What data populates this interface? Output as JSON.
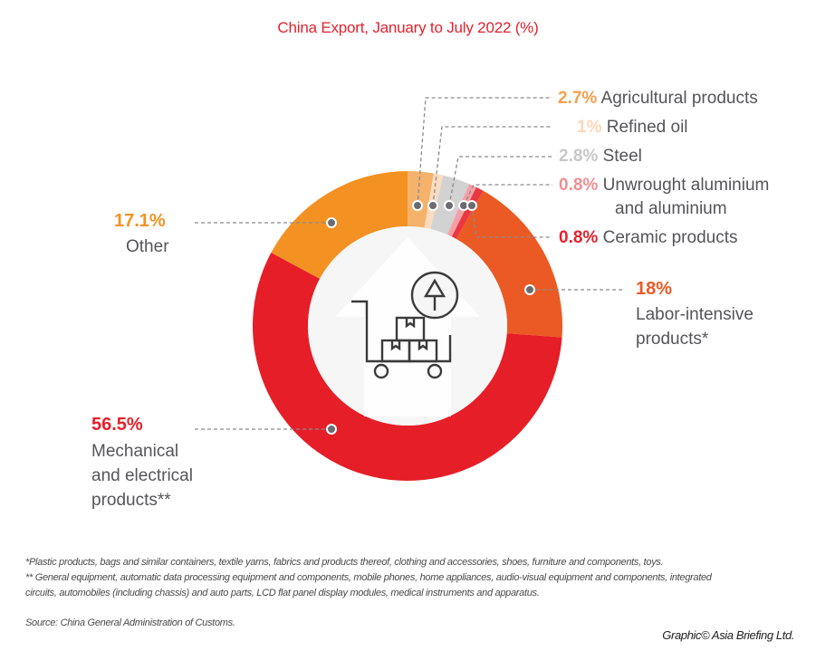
{
  "title": "China Export, January to July 2022 (%)",
  "chart_data": {
    "type": "pie",
    "variant": "donut",
    "title": "China Export, January to July 2022 (%)",
    "unit": "%",
    "start_angle_deg": 0,
    "direction": "clockwise",
    "slices": [
      {
        "key": "agri",
        "label": "Agricultural products",
        "value": 2.7,
        "pct_text": "2.7%",
        "color": "#f5b26b",
        "label_color": "#f5a050"
      },
      {
        "key": "oil",
        "label": "Refined oil",
        "value": 1.0,
        "pct_text": "1%",
        "color": "#fbdcc0",
        "label_color": "#fbd6b8"
      },
      {
        "key": "steel",
        "label": "Steel",
        "value": 2.8,
        "pct_text": "2.8%",
        "color": "#d2d2d2",
        "label_color": "#c8c8c8"
      },
      {
        "key": "alu",
        "label": "Unwrought aluminium and aluminium",
        "label_lines": [
          "Unwrought aluminium",
          "and aluminium"
        ],
        "value": 0.8,
        "pct_text": "0.8%",
        "color": "#f4a0a5",
        "label_color": "#f08e94"
      },
      {
        "key": "ceramic",
        "label": "Ceramic products",
        "value": 0.8,
        "pct_text": "0.8%",
        "color": "#ea3843",
        "label_color": "#e4212d"
      },
      {
        "key": "labor",
        "label": "Labor-intensive products*",
        "label_lines": [
          "Labor-intensive",
          "products*"
        ],
        "value": 18.0,
        "pct_text": "18%",
        "color": "#eb5a24",
        "label_color": "#eb5a24"
      },
      {
        "key": "mech",
        "label": "Mechanical and electrical products**",
        "label_lines": [
          "Mechanical",
          "and electrical",
          "products**"
        ],
        "value": 56.5,
        "pct_text": "56.5%",
        "color": "#e61e28",
        "label_color": "#e4212d"
      },
      {
        "key": "other",
        "label": "Other",
        "value": 17.1,
        "pct_text": "17.1%",
        "color": "#f39222",
        "label_color": "#f39222"
      }
    ]
  },
  "center_icon": "cart-export-icon",
  "footnotes": [
    "*Plastic products, bags and similar containers, textile yarns, fabrics and products thereof, clothing and accessories, shoes, furniture and components, toys.",
    "** General equipment, automatic data processing equipment and components, mobile phones, home appliances, audio-visual equipment and components, integrated",
    "circuits, automobiles (including chassis) and auto parts, LCD flat panel display modules, medical instruments and apparatus."
  ],
  "source": "Source: China General Administration of Customs.",
  "credit": "Graphic© Asia Briefing Ltd."
}
